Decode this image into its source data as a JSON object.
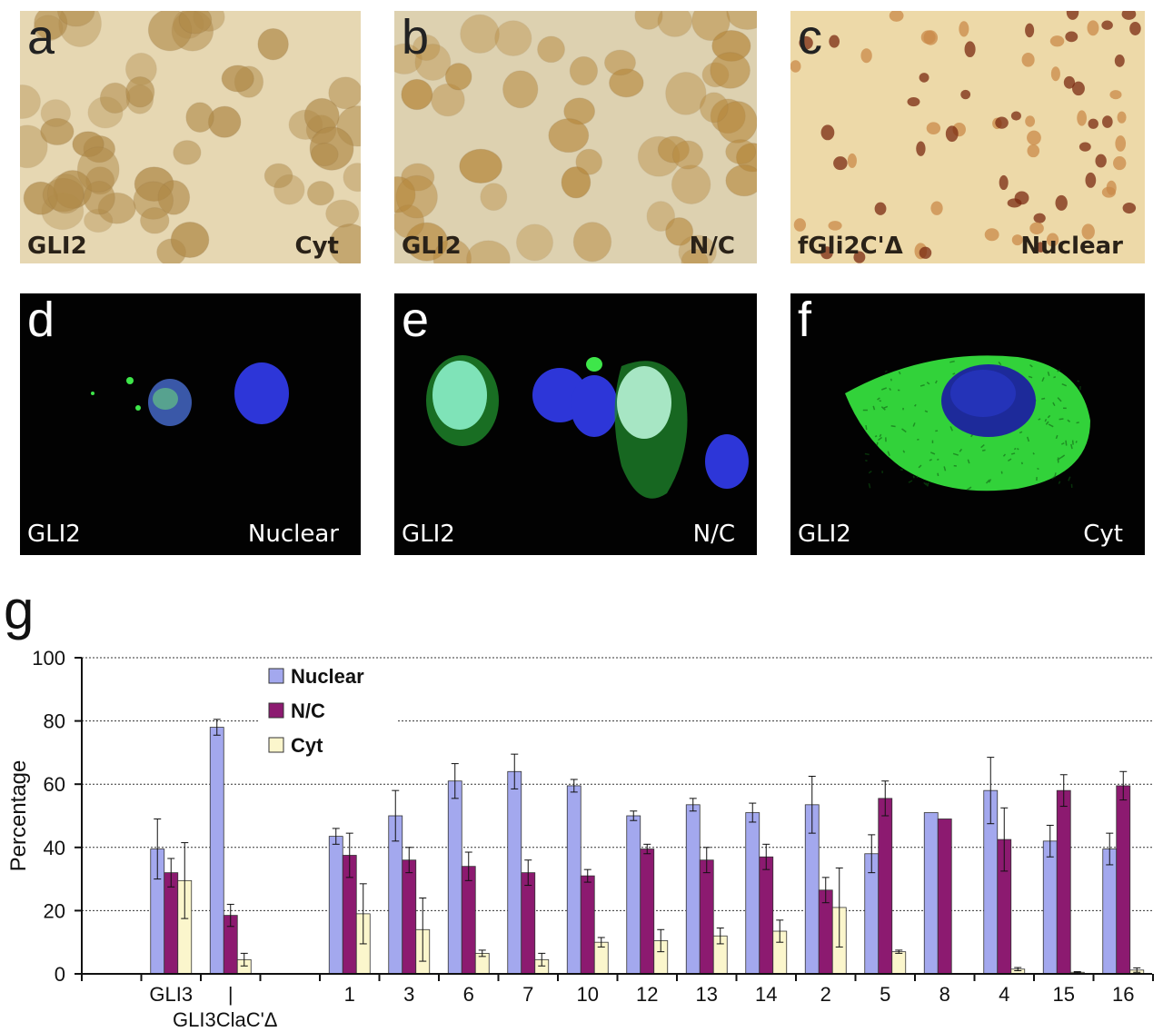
{
  "panels": [
    {
      "letter": "a",
      "left_caption": "GLI2",
      "right_caption": "Cyt",
      "style": "brightfield"
    },
    {
      "letter": "b",
      "left_caption": "GLI2",
      "right_caption": "N/C",
      "style": "brightfield"
    },
    {
      "letter": "c",
      "left_caption": "fGli2C'Δ",
      "right_caption": "Nuclear",
      "style": "brightfield"
    },
    {
      "letter": "d",
      "left_caption": "GLI2",
      "right_caption": "Nuclear",
      "style": "fluorescence"
    },
    {
      "letter": "e",
      "left_caption": "GLI2",
      "right_caption": "N/C",
      "style": "fluorescence"
    },
    {
      "letter": "f",
      "left_caption": "GLI2",
      "right_caption": "Cyt",
      "style": "fluorescence"
    }
  ],
  "chart_data": {
    "panel_letter": "g",
    "type": "bar",
    "title": "",
    "xlabel": "",
    "ylabel": "Percentage",
    "ylim": [
      0,
      100
    ],
    "yticks": [
      0,
      20,
      40,
      60,
      80,
      100
    ],
    "grid": true,
    "legend_position": "top-left",
    "categories": [
      "GLI3",
      "GLI3ClaC'Δ",
      "1",
      "3",
      "6",
      "7",
      "10",
      "12",
      "13",
      "14",
      "2",
      "5",
      "8",
      "4",
      "15",
      "16"
    ],
    "category_label_display": [
      "GLI3",
      "|",
      "1",
      "3",
      "6",
      "7",
      "10",
      "12",
      "13",
      "14",
      "2",
      "5",
      "8",
      "4",
      "15",
      "16"
    ],
    "bottom_label": "GLI3ClaC'Δ",
    "series": [
      {
        "name": "Nuclear",
        "color": "#a3a8ee",
        "values": [
          39.5,
          78,
          43.5,
          50,
          61,
          64,
          59.5,
          50,
          53.5,
          51,
          53.5,
          38,
          51,
          58,
          42,
          39.5
        ],
        "errors": [
          9.5,
          2.5,
          2.5,
          8,
          5.5,
          5.5,
          2,
          1.5,
          2,
          3,
          9,
          6,
          0,
          10.5,
          5,
          5
        ]
      },
      {
        "name": "N/C",
        "color": "#8c1a70",
        "values": [
          32,
          18.5,
          37.5,
          36,
          34,
          32,
          31,
          39.5,
          36,
          37,
          26.5,
          55.5,
          49,
          42.5,
          58,
          59.5
        ],
        "errors": [
          4.5,
          3.5,
          7,
          4,
          4.5,
          4,
          2,
          1.5,
          4,
          4,
          4,
          5.5,
          0,
          10,
          5,
          4.5
        ]
      },
      {
        "name": "Cyt",
        "color": "#fbf6cc",
        "values": [
          29.5,
          4.5,
          19,
          14,
          6.5,
          4.5,
          10,
          10.5,
          12,
          13.5,
          21,
          7,
          0,
          1.5,
          0.5,
          1.2
        ],
        "errors": [
          12,
          2,
          9.5,
          10,
          1,
          2,
          1.5,
          3.5,
          2.5,
          3.5,
          12.5,
          0.5,
          0,
          0.5,
          0.2,
          0.7
        ]
      }
    ]
  }
}
